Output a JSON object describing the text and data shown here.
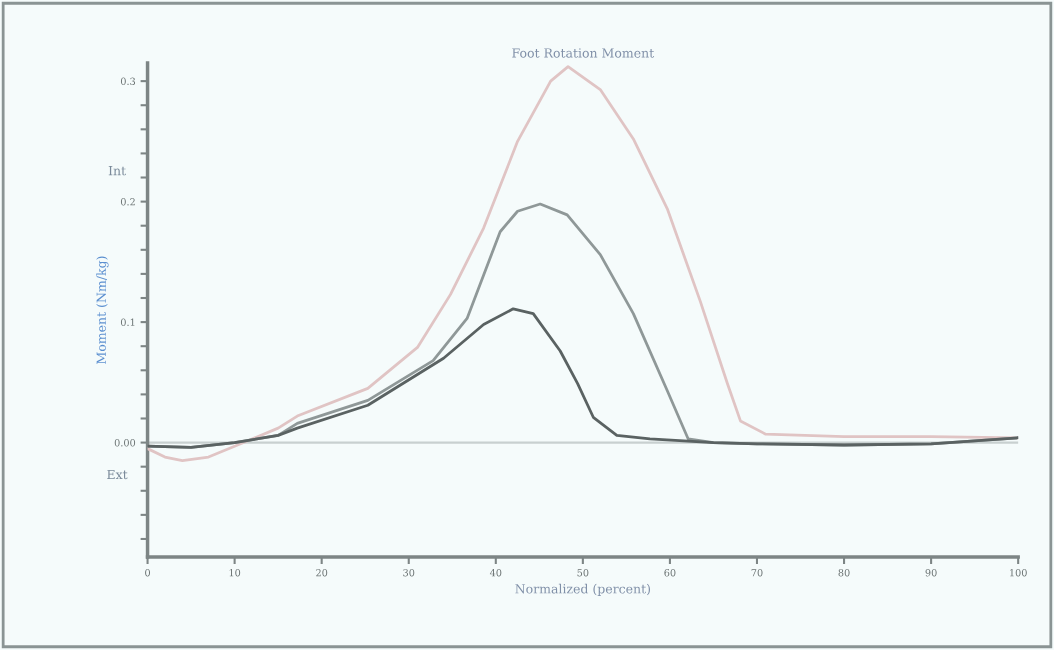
{
  "chart_data": {
    "type": "line",
    "title": "Foot Rotation Moment",
    "xlabel": "Normalized (percent)",
    "ylabel": "Moment (Nm/kg)",
    "annotations": [
      "Int",
      "Ext"
    ],
    "xlim": [
      0,
      100
    ],
    "xticks": [
      0,
      10,
      20,
      30,
      40,
      50,
      60,
      70,
      80,
      90,
      100
    ],
    "ylim": [
      -0.095,
      0.315
    ],
    "yticks": [
      {
        "value": -0.08,
        "label": null
      },
      {
        "value": -0.06,
        "label": null
      },
      {
        "value": -0.04,
        "label": null
      },
      {
        "value": -0.02,
        "label": null
      },
      {
        "value": 0,
        "label": "0.00"
      },
      {
        "value": 0.02,
        "label": null
      },
      {
        "value": 0.04,
        "label": null
      },
      {
        "value": 0.06,
        "label": null
      },
      {
        "value": 0.08,
        "label": null
      },
      0.1,
      {
        "value": 0.12,
        "label": null
      },
      {
        "value": 0.14,
        "label": null
      },
      {
        "value": 0.16,
        "label": null
      },
      {
        "value": 0.18,
        "label": null
      },
      0.2,
      {
        "value": 0.22,
        "label": null
      },
      {
        "value": 0.24,
        "label": null
      },
      {
        "value": 0.26,
        "label": null
      },
      {
        "value": 0.28,
        "label": null
      },
      0.3
    ],
    "grid": false,
    "marker": "none",
    "line_style": "solid",
    "ref_lines": [
      {
        "axis": "y",
        "value": 0,
        "color": "#c8d0d0"
      }
    ],
    "series": [
      {
        "color": "#e0c4c4",
        "x": [
          0,
          2,
          4,
          7,
          10,
          12,
          15,
          17.2,
          25.3,
          31,
          34.8,
          38.6,
          42.5,
          46.3,
          48.3,
          52,
          55.8,
          59.7,
          63.5,
          66.6,
          68.1,
          71,
          80,
          90,
          100
        ],
        "values": [
          -0.005,
          -0.012,
          -0.015,
          -0.012,
          -0.003,
          0.003,
          0.012,
          0.022,
          0.045,
          0.079,
          0.123,
          0.178,
          0.25,
          0.3,
          0.312,
          0.293,
          0.252,
          0.194,
          0.117,
          0.049,
          0.018,
          0.007,
          0.005,
          0.005,
          0.004
        ]
      },
      {
        "color": "#8f9898",
        "x": [
          0,
          5,
          10,
          15,
          17.2,
          25.3,
          32.8,
          36.7,
          40.5,
          42.5,
          45.1,
          48.2,
          52,
          55.8,
          59.7,
          62.1,
          65,
          70,
          80,
          90,
          100
        ],
        "values": [
          -0.003,
          -0.004,
          0,
          0.006,
          0.016,
          0.035,
          0.068,
          0.103,
          0.175,
          0.192,
          0.198,
          0.189,
          0.156,
          0.107,
          0.043,
          0.003,
          0,
          -0.001,
          -0.002,
          -0.001,
          0.004
        ]
      },
      {
        "color": "#5a6262",
        "x": [
          0,
          5,
          10,
          15,
          17.2,
          25.3,
          34,
          38.6,
          42,
          44.3,
          47.4,
          49.4,
          51.2,
          53.9,
          57.7,
          65,
          70,
          80,
          90,
          100
        ],
        "values": [
          -0.003,
          -0.004,
          0,
          0.006,
          0.012,
          0.031,
          0.07,
          0.098,
          0.111,
          0.107,
          0.076,
          0.049,
          0.021,
          0.006,
          0.003,
          0,
          -0.001,
          -0.002,
          -0.001,
          0.004
        ]
      }
    ]
  }
}
